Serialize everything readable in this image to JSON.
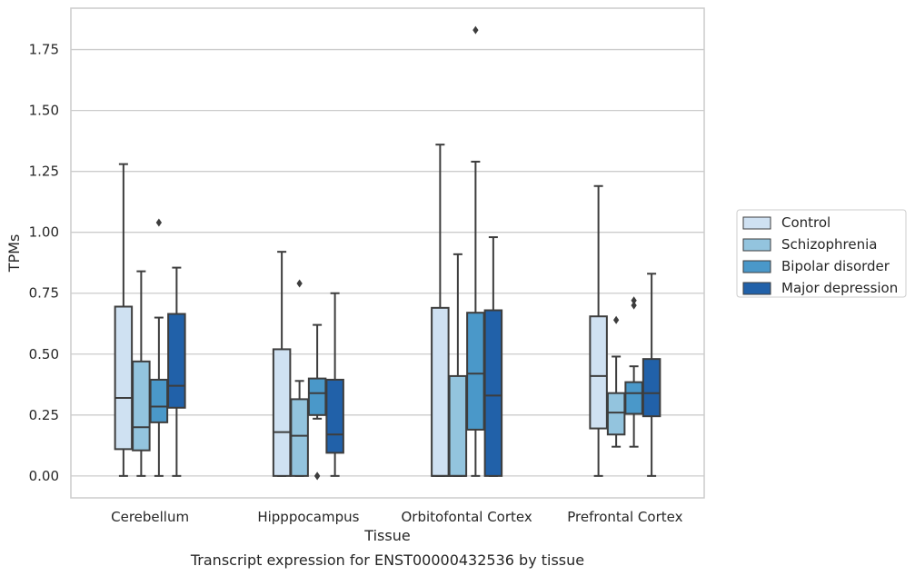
{
  "caption": "Transcript expression for ENST00000432536 by tissue",
  "chart_data": {
    "type": "boxplot",
    "xlabel": "Tissue",
    "ylabel": "TPMs",
    "ylim": [
      -0.09,
      1.92
    ],
    "yticks": [
      0.0,
      0.25,
      0.5,
      0.75,
      1.0,
      1.25,
      1.5,
      1.75
    ],
    "ytick_labels": [
      "0.00",
      "0.25",
      "0.50",
      "0.75",
      "1.00",
      "1.25",
      "1.50",
      "1.75"
    ],
    "grid": "horizontal",
    "legend_position": "right",
    "categories": [
      "Cerebellum",
      "Hipppocampus",
      "Orbitofontal Cortex",
      "Prefrontal Cortex"
    ],
    "series": [
      {
        "name": "Control",
        "color": "#cfe1f2",
        "boxes": [
          {
            "whisker_low": 0.0,
            "q1": 0.11,
            "median": 0.32,
            "q3": 0.695,
            "whisker_high": 1.28,
            "outliers": []
          },
          {
            "whisker_low": 0.0,
            "q1": 0.0,
            "median": 0.18,
            "q3": 0.52,
            "whisker_high": 0.92,
            "outliers": []
          },
          {
            "whisker_low": 0.0,
            "q1": 0.0,
            "median": 0.0,
            "q3": 0.69,
            "whisker_high": 1.36,
            "outliers": []
          },
          {
            "whisker_low": 0.0,
            "q1": 0.195,
            "median": 0.41,
            "q3": 0.655,
            "whisker_high": 1.19,
            "outliers": []
          }
        ]
      },
      {
        "name": "Schizophrenia",
        "color": "#93c4de",
        "boxes": [
          {
            "whisker_low": 0.0,
            "q1": 0.105,
            "median": 0.2,
            "q3": 0.47,
            "whisker_high": 0.84,
            "outliers": []
          },
          {
            "whisker_low": 0.0,
            "q1": 0.0,
            "median": 0.165,
            "q3": 0.315,
            "whisker_high": 0.39,
            "outliers": [
              0.79
            ]
          },
          {
            "whisker_low": 0.0,
            "q1": 0.0,
            "median": 0.0,
            "q3": 0.41,
            "whisker_high": 0.91,
            "outliers": []
          },
          {
            "whisker_low": 0.12,
            "q1": 0.17,
            "median": 0.26,
            "q3": 0.34,
            "whisker_high": 0.49,
            "outliers": [
              0.64
            ]
          }
        ]
      },
      {
        "name": "Bipolar disorder",
        "color": "#4a98c9",
        "boxes": [
          {
            "whisker_low": 0.0,
            "q1": 0.22,
            "median": 0.285,
            "q3": 0.395,
            "whisker_high": 0.65,
            "outliers": [
              1.04
            ]
          },
          {
            "whisker_low": 0.235,
            "q1": 0.25,
            "median": 0.34,
            "q3": 0.4,
            "whisker_high": 0.62,
            "outliers": [
              0.0,
              0.0
            ]
          },
          {
            "whisker_low": 0.0,
            "q1": 0.19,
            "median": 0.42,
            "q3": 0.67,
            "whisker_high": 1.29,
            "outliers": [
              1.83
            ]
          },
          {
            "whisker_low": 0.12,
            "q1": 0.255,
            "median": 0.34,
            "q3": 0.385,
            "whisker_high": 0.45,
            "outliers": [
              0.7,
              0.72
            ]
          }
        ]
      },
      {
        "name": "Major depression",
        "color": "#2161a9",
        "boxes": [
          {
            "whisker_low": 0.0,
            "q1": 0.28,
            "median": 0.37,
            "q3": 0.665,
            "whisker_high": 0.855,
            "outliers": []
          },
          {
            "whisker_low": 0.0,
            "q1": 0.095,
            "median": 0.17,
            "q3": 0.395,
            "whisker_high": 0.75,
            "outliers": []
          },
          {
            "whisker_low": 0.0,
            "q1": 0.0,
            "median": 0.33,
            "q3": 0.68,
            "whisker_high": 0.98,
            "outliers": []
          },
          {
            "whisker_low": 0.0,
            "q1": 0.245,
            "median": 0.34,
            "q3": 0.48,
            "whisker_high": 0.83,
            "outliers": []
          }
        ]
      }
    ]
  }
}
